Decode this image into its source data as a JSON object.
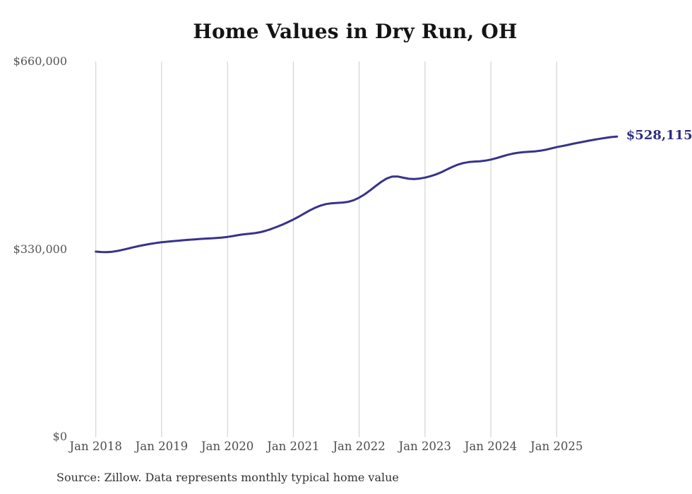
{
  "page": {
    "title": "Home Values in Dry Run, OH",
    "source_note": "Source: Zillow. Data represents monthly typical home value"
  },
  "chart_data": {
    "type": "line",
    "title": "Home Values in Dry Run, OH",
    "xlabel": "",
    "ylabel": "",
    "x_start": "Jan 2018",
    "x_end": "Dec 2025",
    "frequency": "monthly",
    "x_tick_labels": [
      "Jan 2018",
      "Jan 2019",
      "Jan 2020",
      "Jan 2021",
      "Jan 2022",
      "Jan 2023",
      "Jan 2024",
      "Jan 2025"
    ],
    "y_tick_labels": [
      "$0",
      "$330,000",
      "$660,000"
    ],
    "y_ticks": [
      0,
      330000,
      660000
    ],
    "ylim": [
      0,
      660000
    ],
    "grid": "vertical-only",
    "legend": "none",
    "end_label": "$528,115",
    "latest_value": 528115,
    "colors": {
      "line": "#38328c",
      "end_label": "#2e2b80",
      "gridline": "#cccccc",
      "title": "#141414",
      "axis_text": "#555555",
      "source_text": "#333333"
    },
    "values": [
      326000,
      325200,
      325000,
      325700,
      327200,
      329300,
      331600,
      333900,
      336000,
      337900,
      339600,
      341100,
      342400,
      343400,
      344300,
      345100,
      345900,
      346700,
      347500,
      348200,
      348800,
      349300,
      349900,
      350700,
      351800,
      353300,
      355000,
      356400,
      357400,
      358400,
      360100,
      362600,
      365800,
      369400,
      373300,
      377600,
      382300,
      387400,
      392900,
      398300,
      403100,
      406900,
      409500,
      410900,
      411500,
      412100,
      413400,
      416300,
      420700,
      426600,
      433600,
      441100,
      448300,
      454200,
      457700,
      458000,
      455900,
      454000,
      453400,
      454200,
      456000,
      458400,
      461600,
      465600,
      470300,
      474900,
      478800,
      481600,
      483300,
      484200,
      484700,
      485800,
      487600,
      490100,
      493000,
      495800,
      498100,
      499700,
      500700,
      501300,
      502000,
      503200,
      504900,
      507200,
      509500,
      511400,
      513400,
      515400,
      517300,
      519200,
      521000,
      522800,
      524400,
      525900,
      527200,
      528115
    ]
  }
}
